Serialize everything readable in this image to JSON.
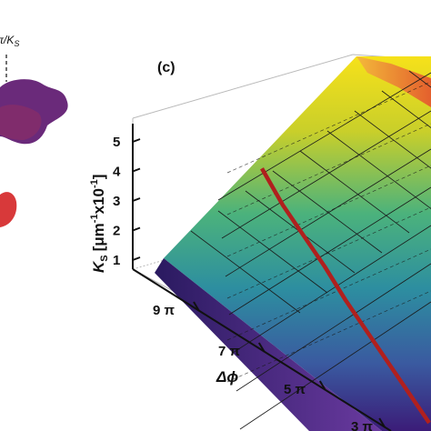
{
  "chart_data": {
    "type": "surface3d",
    "panel_label": "(c)",
    "zlabel_main": "K",
    "zlabel_sub": "S",
    "zlabel_units": "[μm",
    "zlabel_exp1": "-1",
    "zlabel_mid": "x10",
    "zlabel_exp2": "-1",
    "zlabel_close": "]",
    "xlabel": "Δϕ",
    "zticks": [
      "1",
      "2",
      "3",
      "4",
      "5"
    ],
    "xticks": [
      "9 π",
      "7 π",
      "5 π",
      "3 π"
    ],
    "annotation_left": "π/K",
    "annotation_left_sub": "S",
    "series": [
      {
        "values": [
          4.1,
          3.6,
          3.3,
          3.0,
          2.6,
          2.3,
          2.0,
          1.7,
          1.4
        ]
      }
    ],
    "colors": {
      "curve": "#b0201e",
      "surface_low": "#3b1a7a",
      "surface_mid": "#2aa597",
      "surface_high": "#f2e01a",
      "top_orange": "#e4692d"
    }
  }
}
